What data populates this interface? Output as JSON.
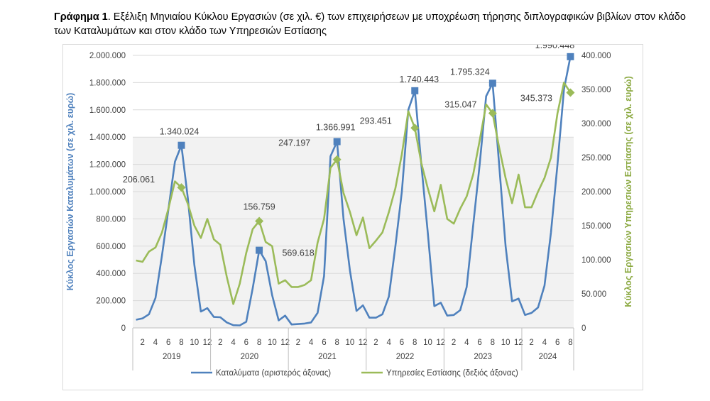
{
  "caption": {
    "prefix": "Γράφημα 1",
    "text": ". Εξέλιξη Μηνιαίου Κύκλου Εργασιών (σε χιλ. €) των επιχειρήσεων με υποχρέωση τήρησης διπλογραφικών βιβλίων στον κλάδο των Καταλυμάτων και στον κλάδο των Υπηρεσιών Εστίασης"
  },
  "chart_data": {
    "type": "line",
    "colors": {
      "series1": "#4f81bd",
      "series2": "#9bbb59",
      "grid": "#d9d9d9",
      "plot_bg_band": "#f2f2f2"
    },
    "ylabel_left": "Κύκλος Εργασιών Καταλυμάτων (σε χιλ. ευρώ)",
    "ylabel_right": "Κύκλος Εργασιών Υπηρεσιών Εστίασης (σε χιλ. ευρώ)",
    "ylim_left": [
      0,
      2000000
    ],
    "ylim_right": [
      0,
      400000
    ],
    "yticks_left": [
      "0",
      "200.000",
      "400.000",
      "600.000",
      "800.000",
      "1.000.000",
      "1.200.000",
      "1.400.000",
      "1.600.000",
      "1.800.000",
      "2.000.000"
    ],
    "yticks_right": [
      "0",
      "50.000",
      "100.000",
      "150.000",
      "200.000",
      "250.000",
      "300.000",
      "350.000",
      "400.000"
    ],
    "years": [
      "2019",
      "2020",
      "2021",
      "2022",
      "2023",
      "2024"
    ],
    "month_ticks": [
      "2",
      "4",
      "6",
      "8",
      "10",
      "12"
    ],
    "months_2024": 8,
    "grid": true,
    "legend_position": "bottom",
    "series": [
      {
        "name": "Καταλύματα (αριστερός άξονας)",
        "axis": "left",
        "color": "#4f81bd",
        "values": [
          60000,
          70000,
          100000,
          220000,
          530000,
          870000,
          1220000,
          1340024,
          950000,
          460000,
          120000,
          145000,
          80000,
          78000,
          40000,
          20000,
          18000,
          45000,
          290000,
          569618,
          490000,
          240000,
          55000,
          90000,
          25000,
          28000,
          32000,
          40000,
          110000,
          380000,
          1260000,
          1366991,
          800000,
          420000,
          125000,
          165000,
          75000,
          75000,
          100000,
          230000,
          600000,
          1000000,
          1600000,
          1740443,
          1200000,
          700000,
          160000,
          185000,
          90000,
          95000,
          130000,
          300000,
          750000,
          1200000,
          1700000,
          1795324,
          1200000,
          600000,
          195000,
          215000,
          95000,
          110000,
          150000,
          310000,
          700000,
          1200000,
          1750000,
          1990448
        ],
        "highlights": [
          {
            "index": 7,
            "label": "1.340.024"
          },
          {
            "index": 19,
            "label": "569.618"
          },
          {
            "index": 31,
            "label": "1.366.991"
          },
          {
            "index": 43,
            "label": "1.740.443"
          },
          {
            "index": 55,
            "label": "1.795.324"
          },
          {
            "index": 67,
            "label": "1.990.448"
          }
        ]
      },
      {
        "name": "Υπηρεσίες Εστίασης (δεξιός άξονας)",
        "axis": "right",
        "color": "#9bbb59",
        "values": [
          99000,
          97000,
          112000,
          118000,
          140000,
          175000,
          215000,
          206061,
          182000,
          150000,
          132000,
          160000,
          130000,
          122000,
          75000,
          35000,
          65000,
          110000,
          145000,
          156759,
          126000,
          120000,
          65000,
          70000,
          60000,
          60000,
          63000,
          70000,
          125000,
          160000,
          235000,
          247197,
          198000,
          170000,
          136000,
          162000,
          117000,
          128000,
          140000,
          170000,
          205000,
          255000,
          318000,
          293451,
          242000,
          205000,
          171000,
          210000,
          160000,
          153000,
          175000,
          193000,
          225000,
          275000,
          328000,
          315047,
          265000,
          220000,
          183000,
          225000,
          177000,
          177000,
          200000,
          220000,
          250000,
          315000,
          360000,
          345373
        ],
        "highlights": [
          {
            "index": 7,
            "label": "206.061"
          },
          {
            "index": 19,
            "label": "156.759"
          },
          {
            "index": 31,
            "label": "247.197"
          },
          {
            "index": 43,
            "label": "293.451"
          },
          {
            "index": 55,
            "label": "315.047"
          },
          {
            "index": 67,
            "label": "345.373"
          }
        ]
      }
    ]
  }
}
